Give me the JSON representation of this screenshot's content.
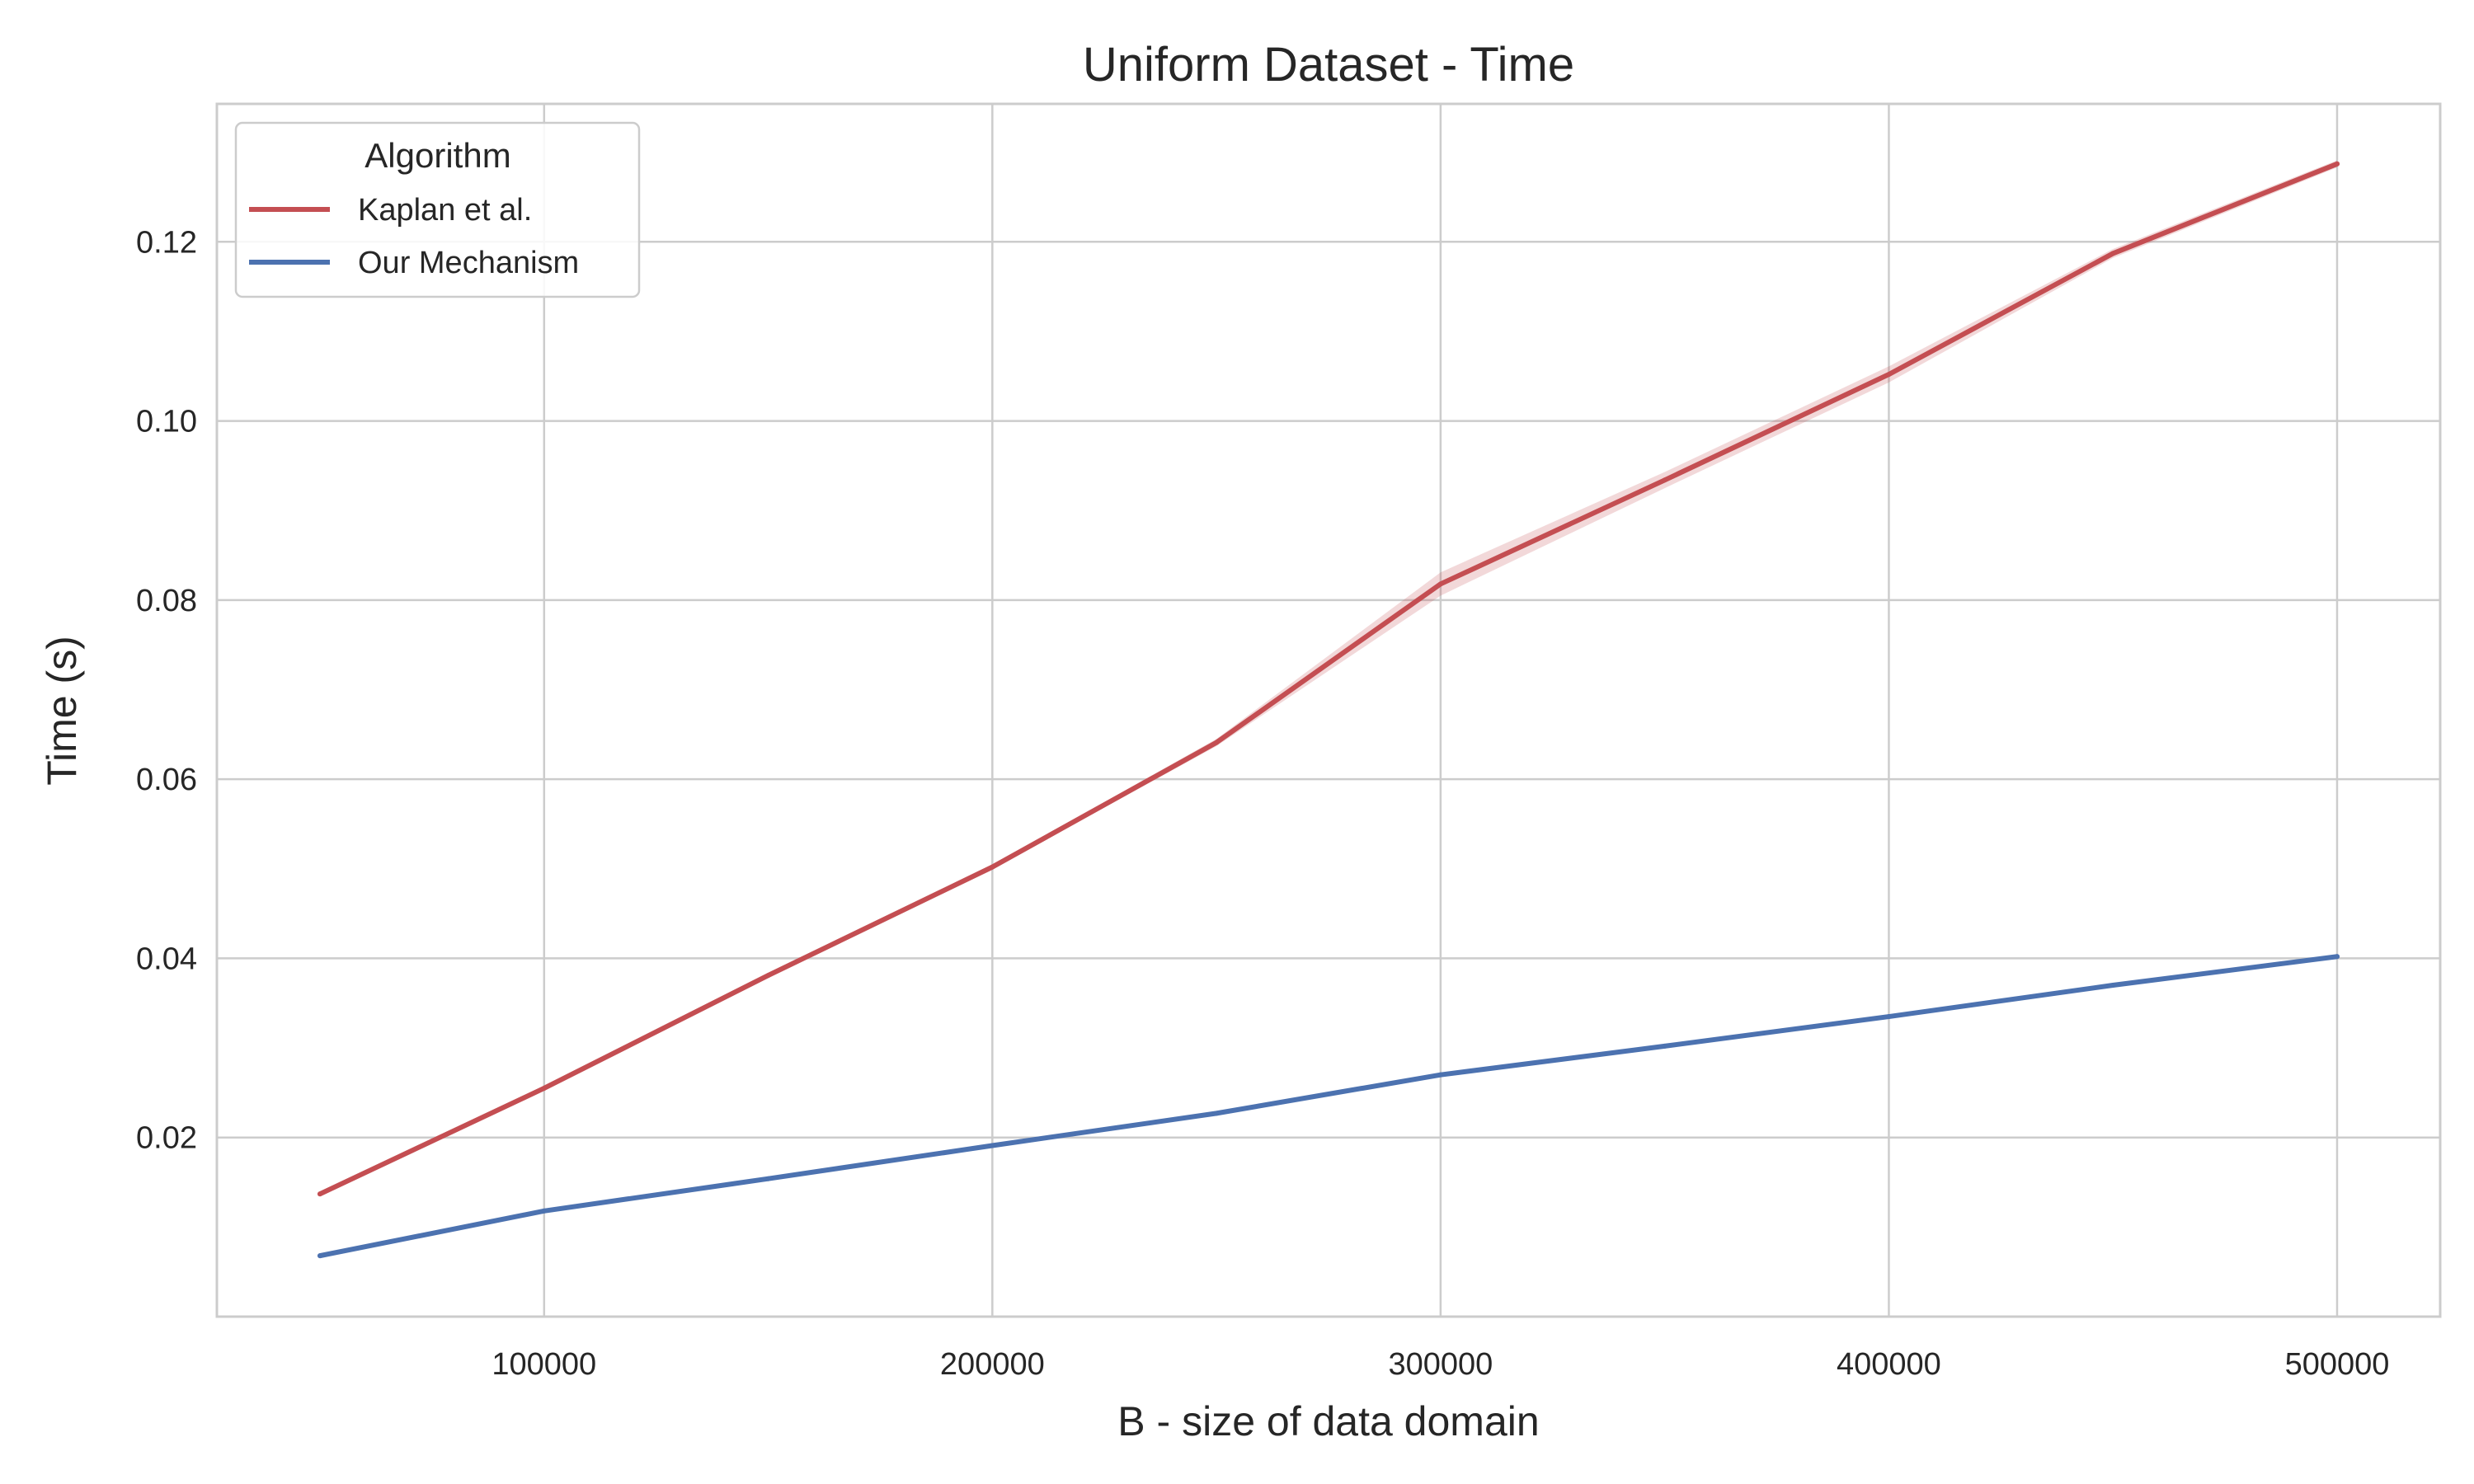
{
  "chart_data": {
    "type": "line",
    "title": "Uniform Dataset - Time",
    "xlabel": "B - size of data domain",
    "ylabel": "Time (s)",
    "x": [
      50000,
      100000,
      150000,
      200000,
      250000,
      300000,
      350000,
      400000,
      450000,
      500000
    ],
    "x_ticks": [
      100000,
      200000,
      300000,
      400000,
      500000
    ],
    "x_tick_labels": [
      "100000",
      "200000",
      "300000",
      "400000",
      "500000"
    ],
    "y_ticks": [
      0.02,
      0.04,
      0.06,
      0.08,
      0.1,
      0.12
    ],
    "y_tick_labels": [
      "0.02",
      "0.04",
      "0.06",
      "0.08",
      "0.10",
      "0.12"
    ],
    "xlim": [
      27000,
      523000
    ],
    "ylim": [
      0.0,
      0.1354
    ],
    "grid": true,
    "legend": {
      "title": "Algorithm",
      "position": "top-left"
    },
    "series": [
      {
        "name": "Kaplan et al.",
        "color": "#c44e52",
        "values": [
          0.0137,
          0.0255,
          0.0381,
          0.0502,
          0.0641,
          0.0818,
          0.0934,
          0.1052,
          0.1187,
          0.1287
        ],
        "ci_low": [
          0.0136,
          0.0253,
          0.0379,
          0.05,
          0.0637,
          0.0805,
          0.0925,
          0.1043,
          0.1182,
          0.1283
        ],
        "ci_high": [
          0.0138,
          0.0257,
          0.0383,
          0.0504,
          0.0645,
          0.0831,
          0.0943,
          0.1061,
          0.1192,
          0.1291
        ]
      },
      {
        "name": "Our Mechanism",
        "color": "#4c72b0",
        "values": [
          0.0068,
          0.0118,
          0.0154,
          0.0191,
          0.0227,
          0.027,
          0.0302,
          0.0335,
          0.037,
          0.0402
        ]
      }
    ]
  }
}
